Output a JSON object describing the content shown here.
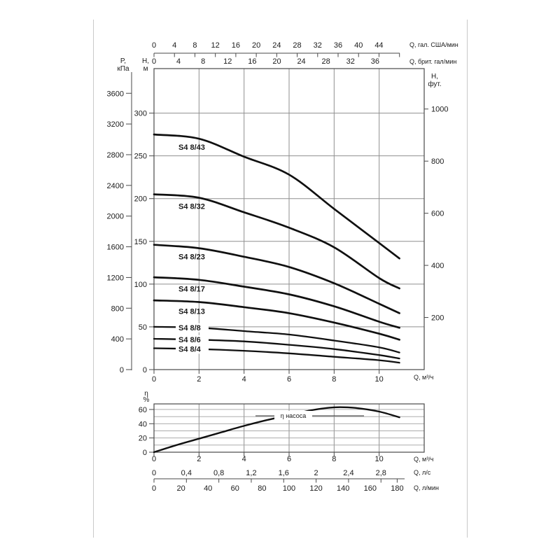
{
  "page": {
    "background": "#ffffff",
    "border_color": "#c9c9c9"
  },
  "colors": {
    "curve": "#101010",
    "grid": "#8f8f8f",
    "grid_light": "#a0a0a0",
    "frame": "#4a4a4a",
    "text": "#1a1a1a"
  },
  "labels": {
    "pressure_axis": [
      "P,",
      "кПа"
    ],
    "head_axis_m": [
      "H,",
      "м"
    ],
    "head_axis_ft": [
      "H,",
      "фут."
    ],
    "flow_us": "Q, гал. США/мин",
    "flow_imp": "Q, брит. гал/мин",
    "flow_m3h_main": "Q, м³/ч",
    "flow_m3h_eff": "Q, м³/ч",
    "flow_ls": "Q, л/с",
    "flow_lmin": "Q, л/мин",
    "eff_axis": [
      "η",
      "%"
    ],
    "eff_curve_label": "η насоса"
  },
  "chart_data": [
    {
      "type": "line",
      "title": "S4 8 submersible pump head curves",
      "xlabel": "Q, м³/ч",
      "ylabel": "H, м",
      "xlim": [
        0,
        12
      ],
      "ylim": [
        0,
        352
      ],
      "grid": true,
      "x_ticks_m3h": [
        0,
        2,
        4,
        6,
        8,
        10
      ],
      "x_ticks_us_gpm": [
        0,
        4,
        8,
        12,
        16,
        20,
        24,
        28,
        32,
        36,
        40,
        44
      ],
      "x_ticks_imp_gpm": [
        0,
        4,
        8,
        12,
        16,
        20,
        24,
        28,
        32,
        36
      ],
      "y_ticks_m": [
        0,
        50,
        100,
        150,
        200,
        250,
        300
      ],
      "y_ticks_kpa": [
        0,
        400,
        800,
        1200,
        1600,
        2000,
        2400,
        2800,
        3200,
        3600
      ],
      "y_ticks_ft": [
        200,
        400,
        600,
        800,
        1000
      ],
      "series": [
        {
          "name": "S4 8/43",
          "x": [
            0,
            2,
            4,
            6,
            8,
            10,
            10.9
          ],
          "y": [
            275,
            270,
            249,
            228,
            188,
            148,
            130
          ]
        },
        {
          "name": "S4 8/32",
          "x": [
            0,
            2,
            4,
            6,
            8,
            10,
            10.9
          ],
          "y": [
            205,
            201,
            184,
            166,
            143,
            107,
            95
          ]
        },
        {
          "name": "S4 8/23",
          "x": [
            0,
            2,
            4,
            6,
            8,
            10,
            10.9
          ],
          "y": [
            146,
            142,
            132,
            120,
            101,
            77,
            66
          ]
        },
        {
          "name": "S4 8/17",
          "x": [
            0,
            2,
            4,
            6,
            8,
            10,
            10.9
          ],
          "y": [
            108,
            105,
            97,
            88,
            74,
            56,
            49
          ]
        },
        {
          "name": "S4 8/13",
          "x": [
            0,
            2,
            4,
            6,
            8,
            10,
            10.9
          ],
          "y": [
            81,
            79,
            73,
            66,
            55,
            42,
            35
          ]
        },
        {
          "name": "S4 8/8",
          "x": [
            0,
            2,
            4,
            6,
            8,
            10,
            10.9
          ],
          "y": [
            50,
            49,
            45,
            41,
            34,
            26,
            20
          ]
        },
        {
          "name": "S4 8/6",
          "x": [
            0,
            2,
            4,
            6,
            8,
            10,
            10.9
          ],
          "y": [
            36,
            35,
            33,
            29,
            24,
            17,
            13
          ]
        },
        {
          "name": "S4 8/4",
          "x": [
            0,
            2,
            4,
            6,
            8,
            10,
            10.9
          ],
          "y": [
            25,
            24,
            22,
            19,
            15,
            11,
            8
          ]
        }
      ]
    },
    {
      "type": "line",
      "title": "Pump efficiency",
      "xlabel": "Q, м³/ч",
      "ylabel": "η, %",
      "xlim": [
        0,
        12
      ],
      "ylim": [
        0,
        68
      ],
      "grid": true,
      "x_ticks_m3h": [
        0,
        2,
        4,
        6,
        8,
        10
      ],
      "x_ticks_ls": [
        "0",
        "0,4",
        "0,8",
        "1,2",
        "1,6",
        "2",
        "2,4",
        "2,8"
      ],
      "x_ticks_ls_values": [
        0,
        0.4,
        0.8,
        1.2,
        1.6,
        2,
        2.4,
        2.8
      ],
      "x_ticks_lmin": [
        0,
        20,
        40,
        60,
        80,
        100,
        120,
        140,
        160,
        180
      ],
      "y_ticks_pct": [
        0,
        20,
        40,
        60
      ],
      "series": [
        {
          "name": "η насоса",
          "x": [
            0,
            1,
            2,
            3,
            4,
            5,
            6,
            7,
            8,
            9,
            10,
            10.9
          ],
          "y": [
            0,
            10,
            19,
            28,
            37,
            45,
            52,
            59,
            63,
            62,
            57,
            49
          ]
        }
      ]
    }
  ]
}
